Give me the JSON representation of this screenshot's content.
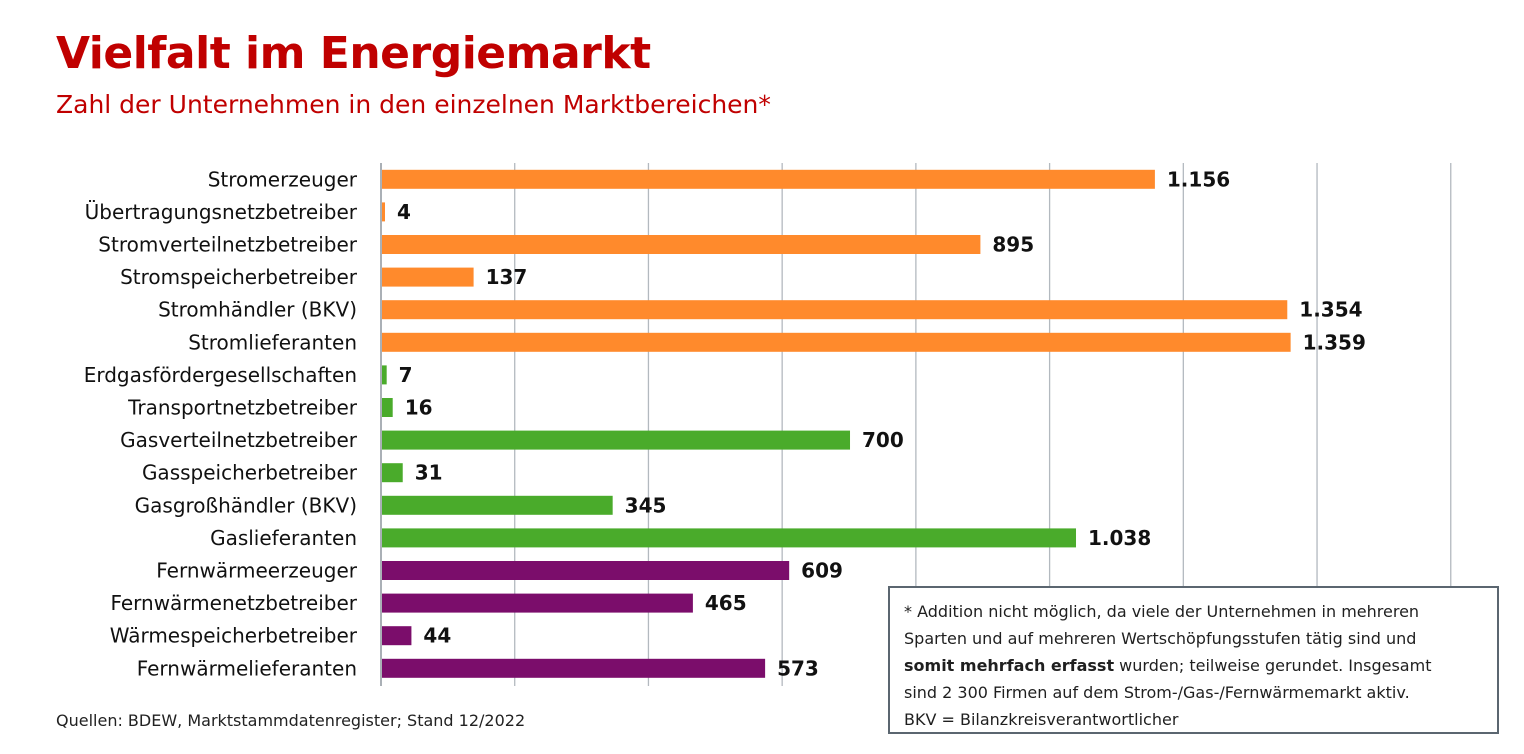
{
  "title": "Vielfalt im Energiemarkt",
  "subtitle": "Zahl der Unternehmen in den einzelnen Marktbereichen*",
  "source": "Quellen: BDEW, Marktstammdatenregister; Stand 12/2022",
  "footnote": {
    "line1": "* Addition nicht möglich, da viele der Unternehmen in mehreren",
    "line2": "Sparten und auf mehreren Wertschöpfungsstufen tätig sind und",
    "line3_bold": "somit mehrfach erfasst",
    "line3_rest": " wurden; teilweise gerundet. Insgesamt",
    "line4": "sind 2 300 Firmen auf dem Strom-/Gas-/Fernwärmemarkt aktiv.",
    "line5": "BKV = Bilanzkreisverantwortlicher"
  },
  "colors": {
    "strom": "#ff8a2c",
    "gas": "#4aab2b",
    "waerme": "#7b0d6b",
    "title": "#c00000",
    "grid": "#b3b9bf"
  },
  "chart_data": {
    "type": "bar",
    "orientation": "horizontal",
    "xlim": [
      0,
      1600
    ],
    "grid": true,
    "categories": [
      "Stromerzeuger",
      "Übertragungsnetzbetreiber",
      "Stromverteilnetzbetreiber",
      "Stromspeicherbetreiber",
      "Stromhändler (BKV)",
      "Stromlieferanten",
      "Erdgasfördergesellschaften",
      "Transportnetzbetreiber",
      "Gasverteilnetzbetreiber",
      "Gasspeicherbetreiber",
      "Gasgroßhändler (BKV)",
      "Gaslieferanten",
      "Fernwärmeerzeuger",
      "Fernwärmenetzbetreiber",
      "Wärmespeicherbetreiber",
      "Fernwärmelieferanten"
    ],
    "values": [
      1156,
      4,
      895,
      137,
      1354,
      1359,
      7,
      16,
      700,
      31,
      345,
      1038,
      609,
      465,
      44,
      573
    ],
    "labels": [
      "1.156",
      "4",
      "895",
      "137",
      "1.354",
      "1.359",
      "7",
      "16",
      "700",
      "31",
      "345",
      "1.038",
      "609",
      "465",
      "44",
      "573"
    ],
    "groups": [
      "strom",
      "strom",
      "strom",
      "strom",
      "strom",
      "strom",
      "gas",
      "gas",
      "gas",
      "gas",
      "gas",
      "gas",
      "waerme",
      "waerme",
      "waerme",
      "waerme"
    ]
  }
}
